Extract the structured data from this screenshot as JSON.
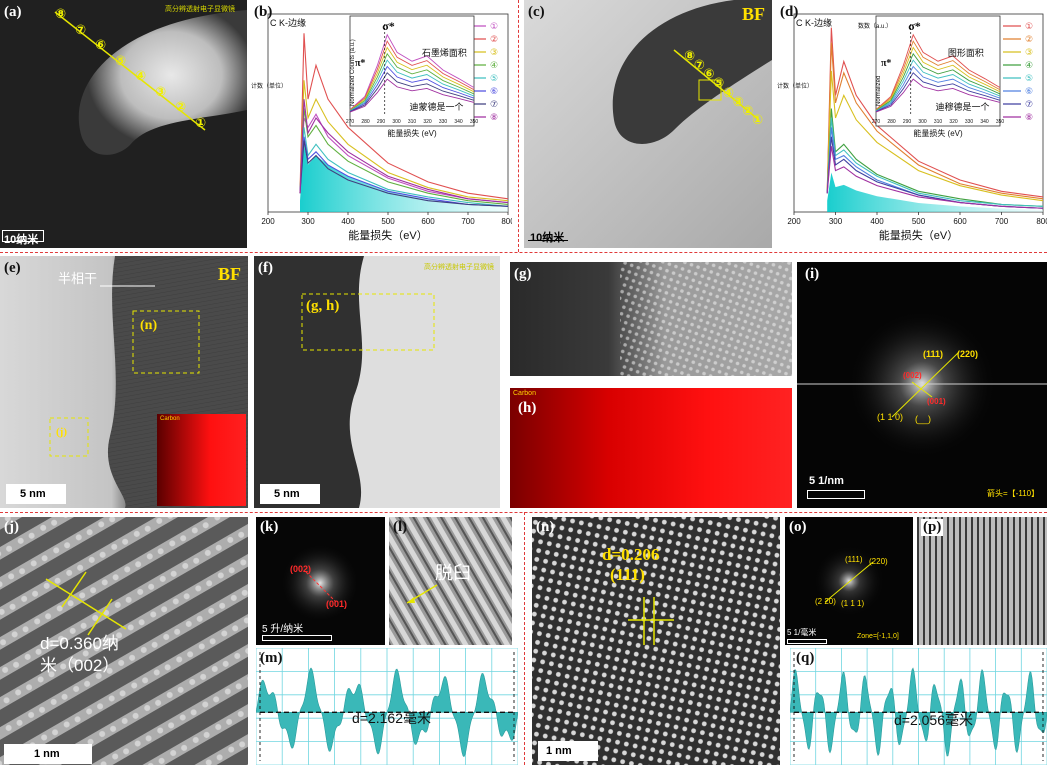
{
  "panels": {
    "a": {
      "label": "(a)",
      "note": "高分辨透射电子显微镜",
      "scale": "10纳米",
      "points": [
        "⑧",
        "⑦",
        "⑥",
        "⑤",
        "④",
        "③",
        "②",
        "①"
      ]
    },
    "b": {
      "label": "(b)",
      "edge": "C K-边缘",
      "ylabel": "计数（单位）",
      "xlabel": "能量损失（eV）",
      "xticks": [
        "200",
        "300",
        "400",
        "500",
        "600",
        "700",
        "800"
      ],
      "legend": [
        "①",
        "②",
        "③",
        "④",
        "⑤",
        "⑥",
        "⑦",
        "⑧"
      ],
      "inset": {
        "ylabel": "Normalized Counts (a.u.)",
        "xlabel": "能量损失 (eV)",
        "xticks": [
          "270",
          "280",
          "290",
          "300",
          "310",
          "320",
          "330",
          "340",
          "350"
        ],
        "pi": "π*",
        "sigma": "σ*",
        "ann1": "石墨烯面积",
        "ann2": "迪蒙德是一个"
      }
    },
    "c": {
      "label": "(c)",
      "tag": "BF",
      "scale": "10纳米",
      "points": [
        "⑧",
        "⑦",
        "⑥",
        "⑤",
        "④",
        "③",
        "②",
        "①"
      ]
    },
    "d": {
      "label": "(d)",
      "edge": "C K-边缘",
      "ylabel": "计数（单位）",
      "xlabel": "能量损失（eV）",
      "xticks": [
        "200",
        "300",
        "400",
        "500",
        "600",
        "700",
        "800"
      ],
      "legend": [
        "①",
        "②",
        "③",
        "④",
        "⑤",
        "⑥",
        "⑦",
        "⑧"
      ],
      "inset": {
        "ylabel": "Normalized",
        "ylabel2": "数数（a.u.）",
        "xlabel": "能量损失 (eV)",
        "xticks": [
          "270",
          "280",
          "290",
          "300",
          "310",
          "320",
          "330",
          "340",
          "350"
        ],
        "pi": "π*",
        "sigma": "σ*",
        "ann1": "图形面积",
        "ann2": "迪穆德是一个"
      }
    },
    "e": {
      "label": "(e)",
      "tag": "BF",
      "note": "半相干",
      "box_n": "(n)",
      "box_j": "(j)",
      "inset": "Carbon",
      "scale": "5 nm"
    },
    "f": {
      "label": "(f)",
      "note": "高分辨透射电子显微镜",
      "box": "(g, h)",
      "scale": "5 nm"
    },
    "g": {
      "label": "(g)"
    },
    "h": {
      "label": "(h)",
      "inset": "Carbon"
    },
    "i": {
      "label": "(i)",
      "spots": [
        "(111)",
        "(220)",
        "(002)",
        "(001)",
        "(1 1 0)",
        "(__)"
      ],
      "scale": "5 1/nm",
      "zone": "箭头=【-110】"
    },
    "j": {
      "label": "(j)",
      "d": "d=0.360纳",
      "d2": "米（002）",
      "scale": "1 nm"
    },
    "k": {
      "label": "(k)",
      "spot1": "(002)",
      "spot2": "(001)",
      "scale": "5 升/纳米"
    },
    "l": {
      "label": "(l)",
      "ann": "脱臼"
    },
    "m": {
      "label": "(m)",
      "d": "d=2.162毫米"
    },
    "n": {
      "label": "(n)",
      "d": "d=0.206",
      "hkl": "(111)",
      "scale": "1 nm"
    },
    "o": {
      "label": "(o)",
      "spots": [
        "(111)",
        "(220)",
        "(2 20)",
        "(1 1 1)"
      ],
      "scale": "5 1/毫米",
      "zone": "Zone=[-1,1,0]"
    },
    "p": {
      "label": "(p)"
    },
    "q": {
      "label": "(q)",
      "d": "d=2.056毫米"
    }
  },
  "chart_data": [
    {
      "type": "line",
      "panel": "b",
      "xlabel": "能量损失（eV）",
      "ylabel": "计数（单位）",
      "xlim": [
        200,
        800
      ],
      "x": [
        280,
        290,
        300,
        320,
        350,
        400,
        500,
        600,
        700,
        800
      ],
      "series": [
        {
          "name": "①",
          "values": [
            0.1,
            0.5,
            0.45,
            0.52,
            0.4,
            0.3,
            0.18,
            0.11,
            0.07,
            0.05
          ]
        },
        {
          "name": "②",
          "values": [
            0.1,
            0.95,
            0.6,
            0.78,
            0.6,
            0.45,
            0.26,
            0.16,
            0.1,
            0.07
          ]
        },
        {
          "name": "③",
          "values": [
            0.1,
            0.7,
            0.5,
            0.6,
            0.48,
            0.36,
            0.21,
            0.13,
            0.08,
            0.06
          ]
        },
        {
          "name": "④",
          "values": [
            0.1,
            0.55,
            0.4,
            0.46,
            0.36,
            0.27,
            0.16,
            0.1,
            0.06,
            0.04
          ]
        },
        {
          "name": "⑤",
          "values": [
            0.1,
            0.45,
            0.3,
            0.36,
            0.28,
            0.21,
            0.12,
            0.08,
            0.05,
            0.03
          ]
        },
        {
          "name": "⑥",
          "values": [
            0.1,
            0.4,
            0.28,
            0.32,
            0.25,
            0.19,
            0.11,
            0.07,
            0.04,
            0.03
          ]
        },
        {
          "name": "⑦",
          "values": [
            0.1,
            0.38,
            0.26,
            0.3,
            0.23,
            0.17,
            0.1,
            0.06,
            0.04,
            0.03
          ]
        },
        {
          "name": "⑧",
          "values": [
            0.1,
            0.6,
            0.42,
            0.5,
            0.42,
            0.32,
            0.19,
            0.12,
            0.07,
            0.05
          ]
        }
      ]
    },
    {
      "type": "line",
      "panel": "d",
      "xlabel": "能量损失（eV）",
      "ylabel": "计数（单位）",
      "xlim": [
        200,
        800
      ],
      "x": [
        280,
        290,
        300,
        320,
        350,
        400,
        500,
        600,
        700,
        800
      ],
      "series": [
        {
          "name": "①",
          "values": [
            0.1,
            0.98,
            0.62,
            0.8,
            0.62,
            0.46,
            0.27,
            0.17,
            0.11,
            0.08
          ]
        },
        {
          "name": "②",
          "values": [
            0.1,
            0.9,
            0.58,
            0.74,
            0.58,
            0.43,
            0.25,
            0.15,
            0.1,
            0.07
          ]
        },
        {
          "name": "③",
          "values": [
            0.1,
            0.75,
            0.5,
            0.62,
            0.49,
            0.37,
            0.22,
            0.14,
            0.09,
            0.06
          ]
        },
        {
          "name": "④",
          "values": [
            0.1,
            0.55,
            0.32,
            0.36,
            0.28,
            0.2,
            0.11,
            0.07,
            0.04,
            0.03
          ]
        },
        {
          "name": "⑤",
          "values": [
            0.1,
            0.5,
            0.3,
            0.33,
            0.26,
            0.19,
            0.1,
            0.06,
            0.04,
            0.03
          ]
        },
        {
          "name": "⑥",
          "values": [
            0.1,
            0.45,
            0.28,
            0.3,
            0.24,
            0.17,
            0.09,
            0.05,
            0.03,
            0.02
          ]
        },
        {
          "name": "⑦",
          "values": [
            0.1,
            0.4,
            0.25,
            0.28,
            0.22,
            0.16,
            0.09,
            0.05,
            0.03,
            0.02
          ]
        },
        {
          "name": "⑧",
          "values": [
            0.1,
            0.35,
            0.22,
            0.24,
            0.19,
            0.14,
            0.08,
            0.05,
            0.03,
            0.02
          ]
        }
      ]
    }
  ],
  "colors": {
    "b": [
      "#c050c0",
      "#e05050",
      "#d8c020",
      "#60b040",
      "#40c0c0",
      "#5050e0",
      "#404080",
      "#a030a0"
    ],
    "d": [
      "#e05050",
      "#e08030",
      "#d8c020",
      "#40a040",
      "#40c0c0",
      "#5080e0",
      "#4040a0",
      "#a030a0"
    ]
  }
}
